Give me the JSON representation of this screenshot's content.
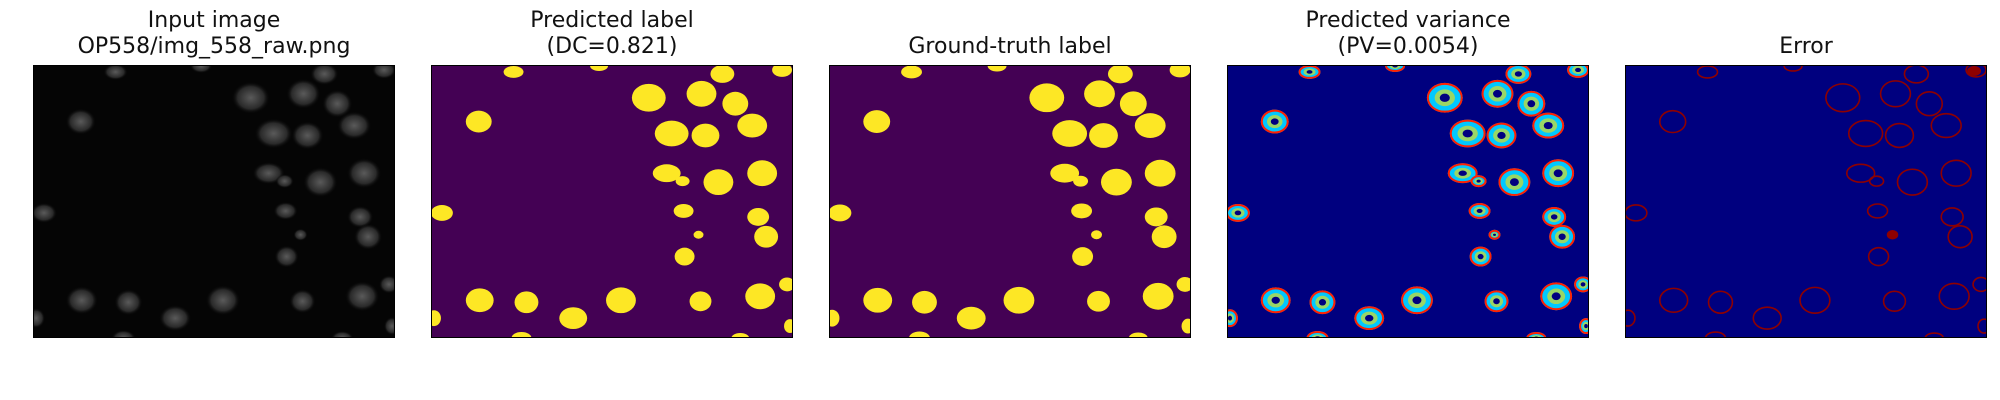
{
  "panels": [
    {
      "title_line1": "Input image",
      "title_line2": "OP558/img_558_raw.png",
      "kind": "raw",
      "icon": "grayscale-image"
    },
    {
      "title_line1": "Predicted label",
      "title_line2": "(DC=0.821)",
      "kind": "pred",
      "icon": "binary-mask"
    },
    {
      "title_line1": "",
      "title_line2": "Ground-truth label",
      "kind": "gt",
      "icon": "binary-mask"
    },
    {
      "title_line1": "Predicted variance",
      "title_line2": "(PV=0.0054)",
      "kind": "var",
      "icon": "variance-map"
    },
    {
      "title_line1": "",
      "title_line2": "Error",
      "kind": "err",
      "icon": "error-map"
    }
  ],
  "colors": {
    "raw_bg": "#050505",
    "mask_bg": "#440154",
    "mask_fg": "#fde725",
    "var_bg": "#00007f",
    "var_hot": "#ff2000",
    "var_warm": "#ffe000",
    "var_cool": "#00c8ff",
    "err_bg": "#00007f",
    "err_fg": "#8f0000"
  }
}
